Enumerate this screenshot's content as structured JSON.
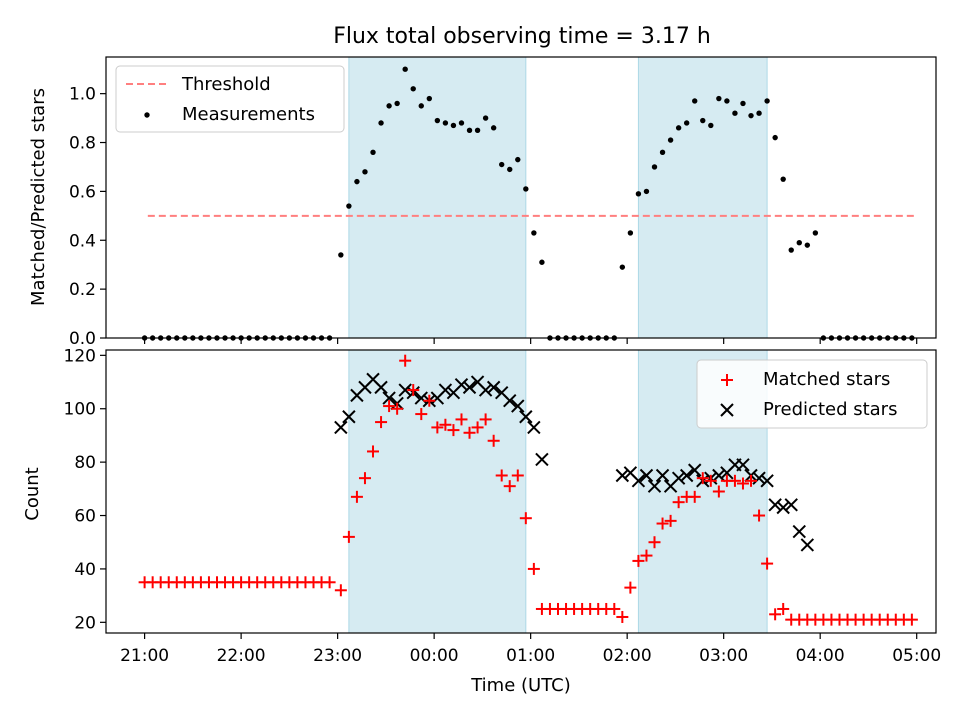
{
  "title": "Flux total observing time = 3.17 h",
  "chart_data": [
    {
      "type": "scatter",
      "ylabel": "Matched/Predicted stars",
      "ylim": [
        0,
        1.15
      ],
      "yticks": [
        0.0,
        0.2,
        0.4,
        0.6,
        0.8,
        1.0
      ],
      "ytick_labels": [
        "0.0",
        "0.2",
        "0.4",
        "0.6",
        "0.8",
        "1.0"
      ],
      "legend": {
        "placement": "top-left",
        "entries": [
          "Threshold",
          "Measurements"
        ]
      },
      "threshold": {
        "label": "Threshold",
        "value": 0.5,
        "x_range": [
          "21:02",
          "05:00"
        ],
        "color": "#ff7f7f"
      },
      "shaded_intervals": [
        [
          "23:07",
          "00:57"
        ],
        [
          "02:07",
          "03:27"
        ]
      ],
      "series": [
        {
          "name": "Measurements",
          "marker": "dot",
          "color": "#000000",
          "points": [
            [
              "21:00",
              0
            ],
            [
              "21:05",
              0
            ],
            [
              "21:10",
              0
            ],
            [
              "21:15",
              0
            ],
            [
              "21:20",
              0
            ],
            [
              "21:25",
              0
            ],
            [
              "21:30",
              0
            ],
            [
              "21:35",
              0
            ],
            [
              "21:40",
              0
            ],
            [
              "21:45",
              0
            ],
            [
              "21:50",
              0
            ],
            [
              "21:55",
              0
            ],
            [
              "22:00",
              0
            ],
            [
              "22:05",
              0
            ],
            [
              "22:10",
              0
            ],
            [
              "22:15",
              0
            ],
            [
              "22:20",
              0
            ],
            [
              "22:25",
              0
            ],
            [
              "22:30",
              0
            ],
            [
              "22:35",
              0
            ],
            [
              "22:40",
              0
            ],
            [
              "22:45",
              0
            ],
            [
              "22:50",
              0
            ],
            [
              "22:55",
              0
            ],
            [
              "23:02",
              0.34
            ],
            [
              "23:07",
              0.54
            ],
            [
              "23:12",
              0.64
            ],
            [
              "23:17",
              0.68
            ],
            [
              "23:22",
              0.76
            ],
            [
              "23:27",
              0.88
            ],
            [
              "23:32",
              0.95
            ],
            [
              "23:37",
              0.96
            ],
            [
              "23:42",
              1.1
            ],
            [
              "23:47",
              1.02
            ],
            [
              "23:52",
              0.95
            ],
            [
              "23:57",
              0.98
            ],
            [
              "00:02",
              0.89
            ],
            [
              "00:07",
              0.88
            ],
            [
              "00:12",
              0.87
            ],
            [
              "00:17",
              0.88
            ],
            [
              "00:22",
              0.85
            ],
            [
              "00:27",
              0.85
            ],
            [
              "00:32",
              0.9
            ],
            [
              "00:37",
              0.86
            ],
            [
              "00:42",
              0.71
            ],
            [
              "00:47",
              0.69
            ],
            [
              "00:52",
              0.73
            ],
            [
              "00:57",
              0.61
            ],
            [
              "01:02",
              0.43
            ],
            [
              "01:07",
              0.31
            ],
            [
              "01:12",
              0
            ],
            [
              "01:17",
              0
            ],
            [
              "01:22",
              0
            ],
            [
              "01:27",
              0
            ],
            [
              "01:32",
              0
            ],
            [
              "01:37",
              0
            ],
            [
              "01:42",
              0
            ],
            [
              "01:47",
              0
            ],
            [
              "01:52",
              0
            ],
            [
              "01:57",
              0.29
            ],
            [
              "02:02",
              0.43
            ],
            [
              "02:07",
              0.59
            ],
            [
              "02:12",
              0.6
            ],
            [
              "02:17",
              0.7
            ],
            [
              "02:22",
              0.76
            ],
            [
              "02:27",
              0.81
            ],
            [
              "02:32",
              0.86
            ],
            [
              "02:37",
              0.88
            ],
            [
              "02:42",
              0.97
            ],
            [
              "02:47",
              0.89
            ],
            [
              "02:52",
              0.87
            ],
            [
              "02:57",
              0.98
            ],
            [
              "03:02",
              0.97
            ],
            [
              "03:07",
              0.92
            ],
            [
              "03:12",
              0.96
            ],
            [
              "03:17",
              0.91
            ],
            [
              "03:22",
              0.92
            ],
            [
              "03:27",
              0.97
            ],
            [
              "03:32",
              0.82
            ],
            [
              "03:37",
              0.65
            ],
            [
              "03:42",
              0.36
            ],
            [
              "03:47",
              0.39
            ],
            [
              "03:52",
              0.38
            ],
            [
              "03:57",
              0.43
            ],
            [
              "04:02",
              0
            ],
            [
              "04:07",
              0
            ],
            [
              "04:12",
              0
            ],
            [
              "04:17",
              0
            ],
            [
              "04:22",
              0
            ],
            [
              "04:27",
              0
            ],
            [
              "04:32",
              0
            ],
            [
              "04:37",
              0
            ],
            [
              "04:42",
              0
            ],
            [
              "04:47",
              0
            ],
            [
              "04:52",
              0
            ],
            [
              "04:57",
              0
            ]
          ]
        }
      ]
    },
    {
      "type": "scatter",
      "xlabel": "Time (UTC)",
      "ylabel": "Count",
      "ylim": [
        16,
        122
      ],
      "yticks": [
        20,
        40,
        60,
        80,
        100,
        120
      ],
      "ytick_labels": [
        "20",
        "40",
        "60",
        "80",
        "100",
        "120"
      ],
      "xlim": [
        "20:36",
        "05:12"
      ],
      "xticks": [
        "21:00",
        "22:00",
        "23:00",
        "00:00",
        "01:00",
        "02:00",
        "03:00",
        "04:00",
        "05:00"
      ],
      "xtick_labels": [
        "21:00",
        "22:00",
        "23:00",
        "00:00",
        "01:00",
        "02:00",
        "03:00",
        "04:00",
        "05:00"
      ],
      "legend": {
        "placement": "top-right",
        "entries": [
          "Matched stars",
          "Predicted stars"
        ]
      },
      "shaded_intervals": [
        [
          "23:07",
          "00:57"
        ],
        [
          "02:07",
          "03:27"
        ]
      ],
      "series": [
        {
          "name": "Matched stars",
          "marker": "plus",
          "color": "#ff0000",
          "points": [
            [
              "21:00",
              35
            ],
            [
              "21:05",
              35
            ],
            [
              "21:10",
              35
            ],
            [
              "21:15",
              35
            ],
            [
              "21:20",
              35
            ],
            [
              "21:25",
              35
            ],
            [
              "21:30",
              35
            ],
            [
              "21:35",
              35
            ],
            [
              "21:40",
              35
            ],
            [
              "21:45",
              35
            ],
            [
              "21:50",
              35
            ],
            [
              "21:55",
              35
            ],
            [
              "22:00",
              35
            ],
            [
              "22:05",
              35
            ],
            [
              "22:10",
              35
            ],
            [
              "22:15",
              35
            ],
            [
              "22:20",
              35
            ],
            [
              "22:25",
              35
            ],
            [
              "22:30",
              35
            ],
            [
              "22:35",
              35
            ],
            [
              "22:40",
              35
            ],
            [
              "22:45",
              35
            ],
            [
              "22:50",
              35
            ],
            [
              "22:55",
              35
            ],
            [
              "23:02",
              32
            ],
            [
              "23:07",
              52
            ],
            [
              "23:12",
              67
            ],
            [
              "23:17",
              74
            ],
            [
              "23:22",
              84
            ],
            [
              "23:27",
              95
            ],
            [
              "23:32",
              101
            ],
            [
              "23:37",
              100
            ],
            [
              "23:42",
              118
            ],
            [
              "23:47",
              107
            ],
            [
              "23:52",
              98
            ],
            [
              "23:57",
              103
            ],
            [
              "00:02",
              93
            ],
            [
              "00:07",
              94
            ],
            [
              "00:12",
              92
            ],
            [
              "00:17",
              96
            ],
            [
              "00:22",
              91
            ],
            [
              "00:27",
              93
            ],
            [
              "00:32",
              96
            ],
            [
              "00:37",
              88
            ],
            [
              "00:42",
              75
            ],
            [
              "00:47",
              71
            ],
            [
              "00:52",
              75
            ],
            [
              "00:57",
              59
            ],
            [
              "01:02",
              40
            ],
            [
              "01:07",
              25
            ],
            [
              "01:12",
              25
            ],
            [
              "01:17",
              25
            ],
            [
              "01:22",
              25
            ],
            [
              "01:27",
              25
            ],
            [
              "01:32",
              25
            ],
            [
              "01:37",
              25
            ],
            [
              "01:42",
              25
            ],
            [
              "01:47",
              25
            ],
            [
              "01:52",
              25
            ],
            [
              "01:57",
              22
            ],
            [
              "02:02",
              33
            ],
            [
              "02:07",
              43
            ],
            [
              "02:12",
              45
            ],
            [
              "02:17",
              50
            ],
            [
              "02:22",
              57
            ],
            [
              "02:27",
              58
            ],
            [
              "02:32",
              65
            ],
            [
              "02:37",
              67
            ],
            [
              "02:42",
              67
            ],
            [
              "02:47",
              74
            ],
            [
              "02:52",
              73
            ],
            [
              "02:57",
              69
            ],
            [
              "03:02",
              73
            ],
            [
              "03:07",
              73
            ],
            [
              "03:12",
              72
            ],
            [
              "03:17",
              73
            ],
            [
              "03:22",
              60
            ],
            [
              "03:27",
              42
            ],
            [
              "03:32",
              23
            ],
            [
              "03:37",
              25
            ],
            [
              "03:42",
              21
            ],
            [
              "03:47",
              21
            ],
            [
              "03:52",
              21
            ],
            [
              "03:57",
              21
            ],
            [
              "04:02",
              21
            ],
            [
              "04:07",
              21
            ],
            [
              "04:12",
              21
            ],
            [
              "04:17",
              21
            ],
            [
              "04:22",
              21
            ],
            [
              "04:27",
              21
            ],
            [
              "04:32",
              21
            ],
            [
              "04:37",
              21
            ],
            [
              "04:42",
              21
            ],
            [
              "04:47",
              21
            ],
            [
              "04:52",
              21
            ],
            [
              "04:57",
              21
            ]
          ]
        },
        {
          "name": "Predicted stars",
          "marker": "x",
          "color": "#000000",
          "points": [
            [
              "23:02",
              93
            ],
            [
              "23:07",
              97
            ],
            [
              "23:12",
              105
            ],
            [
              "23:17",
              108
            ],
            [
              "23:22",
              111
            ],
            [
              "23:27",
              108
            ],
            [
              "23:32",
              104
            ],
            [
              "23:37",
              102
            ],
            [
              "23:42",
              107
            ],
            [
              "23:47",
              106
            ],
            [
              "23:52",
              104
            ],
            [
              "23:57",
              103
            ],
            [
              "00:02",
              104
            ],
            [
              "00:07",
              107
            ],
            [
              "00:12",
              106
            ],
            [
              "00:17",
              109
            ],
            [
              "00:22",
              108
            ],
            [
              "00:27",
              110
            ],
            [
              "00:32",
              107
            ],
            [
              "00:37",
              108
            ],
            [
              "00:42",
              106
            ],
            [
              "00:47",
              103
            ],
            [
              "00:52",
              101
            ],
            [
              "00:57",
              97
            ],
            [
              "01:02",
              93
            ],
            [
              "01:07",
              81
            ],
            [
              "01:57",
              75
            ],
            [
              "02:02",
              76
            ],
            [
              "02:07",
              73
            ],
            [
              "02:12",
              75
            ],
            [
              "02:17",
              71
            ],
            [
              "02:22",
              75
            ],
            [
              "02:27",
              71
            ],
            [
              "02:32",
              74
            ],
            [
              "02:37",
              75
            ],
            [
              "02:42",
              77
            ],
            [
              "02:47",
              73
            ],
            [
              "02:52",
              74
            ],
            [
              "02:57",
              75
            ],
            [
              "03:02",
              76
            ],
            [
              "03:07",
              79
            ],
            [
              "03:12",
              79
            ],
            [
              "03:17",
              75
            ],
            [
              "03:22",
              74
            ],
            [
              "03:27",
              73
            ],
            [
              "03:32",
              64
            ],
            [
              "03:37",
              63
            ],
            [
              "03:42",
              64
            ],
            [
              "03:47",
              54
            ],
            [
              "03:52",
              49
            ]
          ]
        }
      ]
    }
  ]
}
